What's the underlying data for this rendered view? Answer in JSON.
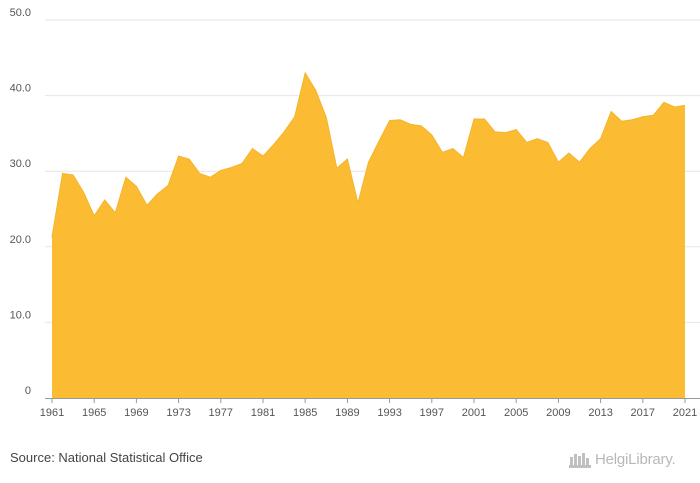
{
  "chart_data": {
    "type": "area",
    "title": "",
    "xlabel": "",
    "ylabel": "",
    "ylim": [
      0,
      50
    ],
    "yticks": [
      "0",
      "10.0",
      "20.0",
      "30.0",
      "40.0",
      "50.0"
    ],
    "xticks": [
      "1961",
      "1965",
      "1969",
      "1973",
      "1977",
      "1981",
      "1985",
      "1989",
      "1993",
      "1997",
      "2001",
      "2005",
      "2009",
      "2013",
      "2017",
      "2021"
    ],
    "grid": true,
    "color": "#FBBC34",
    "line_color": "#F5B429",
    "x": [
      1961,
      1962,
      1963,
      1964,
      1965,
      1966,
      1967,
      1968,
      1969,
      1970,
      1971,
      1972,
      1973,
      1974,
      1975,
      1976,
      1977,
      1978,
      1979,
      1980,
      1981,
      1982,
      1983,
      1984,
      1985,
      1986,
      1987,
      1988,
      1989,
      1990,
      1991,
      1992,
      1993,
      1994,
      1995,
      1996,
      1997,
      1998,
      1999,
      2000,
      2001,
      2002,
      2003,
      2004,
      2005,
      2006,
      2007,
      2008,
      2009,
      2010,
      2011,
      2012,
      2013,
      2014,
      2015,
      2016,
      2017,
      2018,
      2019,
      2020,
      2021
    ],
    "values": [
      21.3,
      29.7,
      29.5,
      27.2,
      24.1,
      26.2,
      24.5,
      29.2,
      28.0,
      25.5,
      27.0,
      28.1,
      32.0,
      31.6,
      29.7,
      29.2,
      30.1,
      30.5,
      31.0,
      33.0,
      32.0,
      33.5,
      35.2,
      37.2,
      43.0,
      40.7,
      37.1,
      30.4,
      31.6,
      25.8,
      31.2,
      34.0,
      36.7,
      36.8,
      36.2,
      36.0,
      34.8,
      32.5,
      33.0,
      31.8,
      36.9,
      36.9,
      35.2,
      35.1,
      35.5,
      33.8,
      34.3,
      33.8,
      31.2,
      32.4,
      31.2,
      33.0,
      34.3,
      37.9,
      36.6,
      36.8,
      37.2,
      37.4,
      39.1,
      38.5,
      38.7
    ]
  },
  "footer": {
    "source": "Source: National Statistical Office",
    "logo_text": "HelgiLibrary."
  }
}
